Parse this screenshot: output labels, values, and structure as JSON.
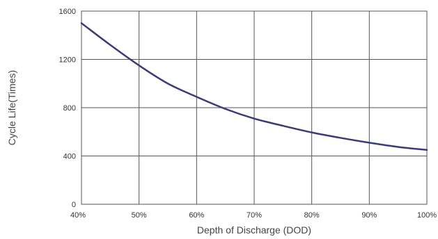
{
  "chart_data": {
    "type": "line",
    "xlabel": "Depth of Discharge (DOD)",
    "ylabel": "Cycle Life(Times)",
    "x_ticks": [
      "40%",
      "50%",
      "60%",
      "70%",
      "80%",
      "90%",
      "100%"
    ],
    "y_ticks": [
      "0",
      "400",
      "800",
      "1200",
      "1600"
    ],
    "xlim": [
      40,
      100
    ],
    "ylim": [
      0,
      1600
    ],
    "grid": true,
    "series": [
      {
        "color": "#3b3a7a",
        "x": [
          40,
          45,
          50,
          55,
          60,
          65,
          70,
          75,
          80,
          85,
          90,
          95,
          100
        ],
        "y": [
          1500,
          1320,
          1150,
          1000,
          890,
          790,
          710,
          650,
          595,
          550,
          510,
          475,
          450
        ]
      }
    ]
  }
}
